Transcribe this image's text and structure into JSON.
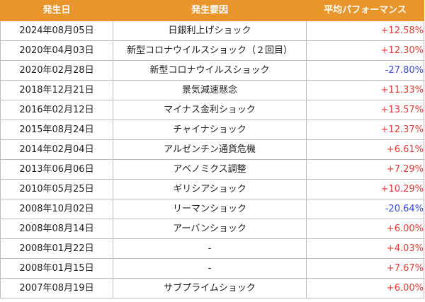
{
  "colors": {
    "header_bg": "#e8962c",
    "positive": "#e53935",
    "negative": "#3949d6",
    "border": "#bdbdbd"
  },
  "header": {
    "date": "発生日",
    "cause": "発生要因",
    "performance": "平均パフォーマンス"
  },
  "rows": [
    {
      "date": "2024年08月05日",
      "cause": "日銀利上げショック",
      "performance": "+12.58%",
      "sign": "pos"
    },
    {
      "date": "2020年04月03日",
      "cause": "新型コロナウイルスショック（２回目）",
      "performance": "+12.30%",
      "sign": "pos"
    },
    {
      "date": "2020年02月28日",
      "cause": "新型コロナウイルスショック",
      "performance": "-27.80%",
      "sign": "neg"
    },
    {
      "date": "2018年12月21日",
      "cause": "景気減速懸念",
      "performance": "+11.33%",
      "sign": "pos"
    },
    {
      "date": "2016年02月12日",
      "cause": "マイナス金利ショック",
      "performance": "+13.57%",
      "sign": "pos"
    },
    {
      "date": "2015年08月24日",
      "cause": "チャイナショック",
      "performance": "+12.37%",
      "sign": "pos"
    },
    {
      "date": "2014年02月04日",
      "cause": "アルゼンチン通貨危機",
      "performance": "+6.61%",
      "sign": "pos"
    },
    {
      "date": "2013年06月06日",
      "cause": "アベノミクス調整",
      "performance": "+7.29%",
      "sign": "pos"
    },
    {
      "date": "2010年05月25日",
      "cause": "ギリシアショック",
      "performance": "+10.29%",
      "sign": "pos"
    },
    {
      "date": "2008年10月02日",
      "cause": "リーマンショック",
      "performance": "-20.64%",
      "sign": "neg"
    },
    {
      "date": "2008年08月14日",
      "cause": "アーバンショック",
      "performance": "+6.00%",
      "sign": "pos"
    },
    {
      "date": "2008年01月22日",
      "cause": "-",
      "performance": "+4.03%",
      "sign": "pos"
    },
    {
      "date": "2008年01月15日",
      "cause": "-",
      "performance": "+7.67%",
      "sign": "pos"
    },
    {
      "date": "2007年08月19日",
      "cause": "サブプライムショック",
      "performance": "+6.00%",
      "sign": "pos"
    }
  ]
}
